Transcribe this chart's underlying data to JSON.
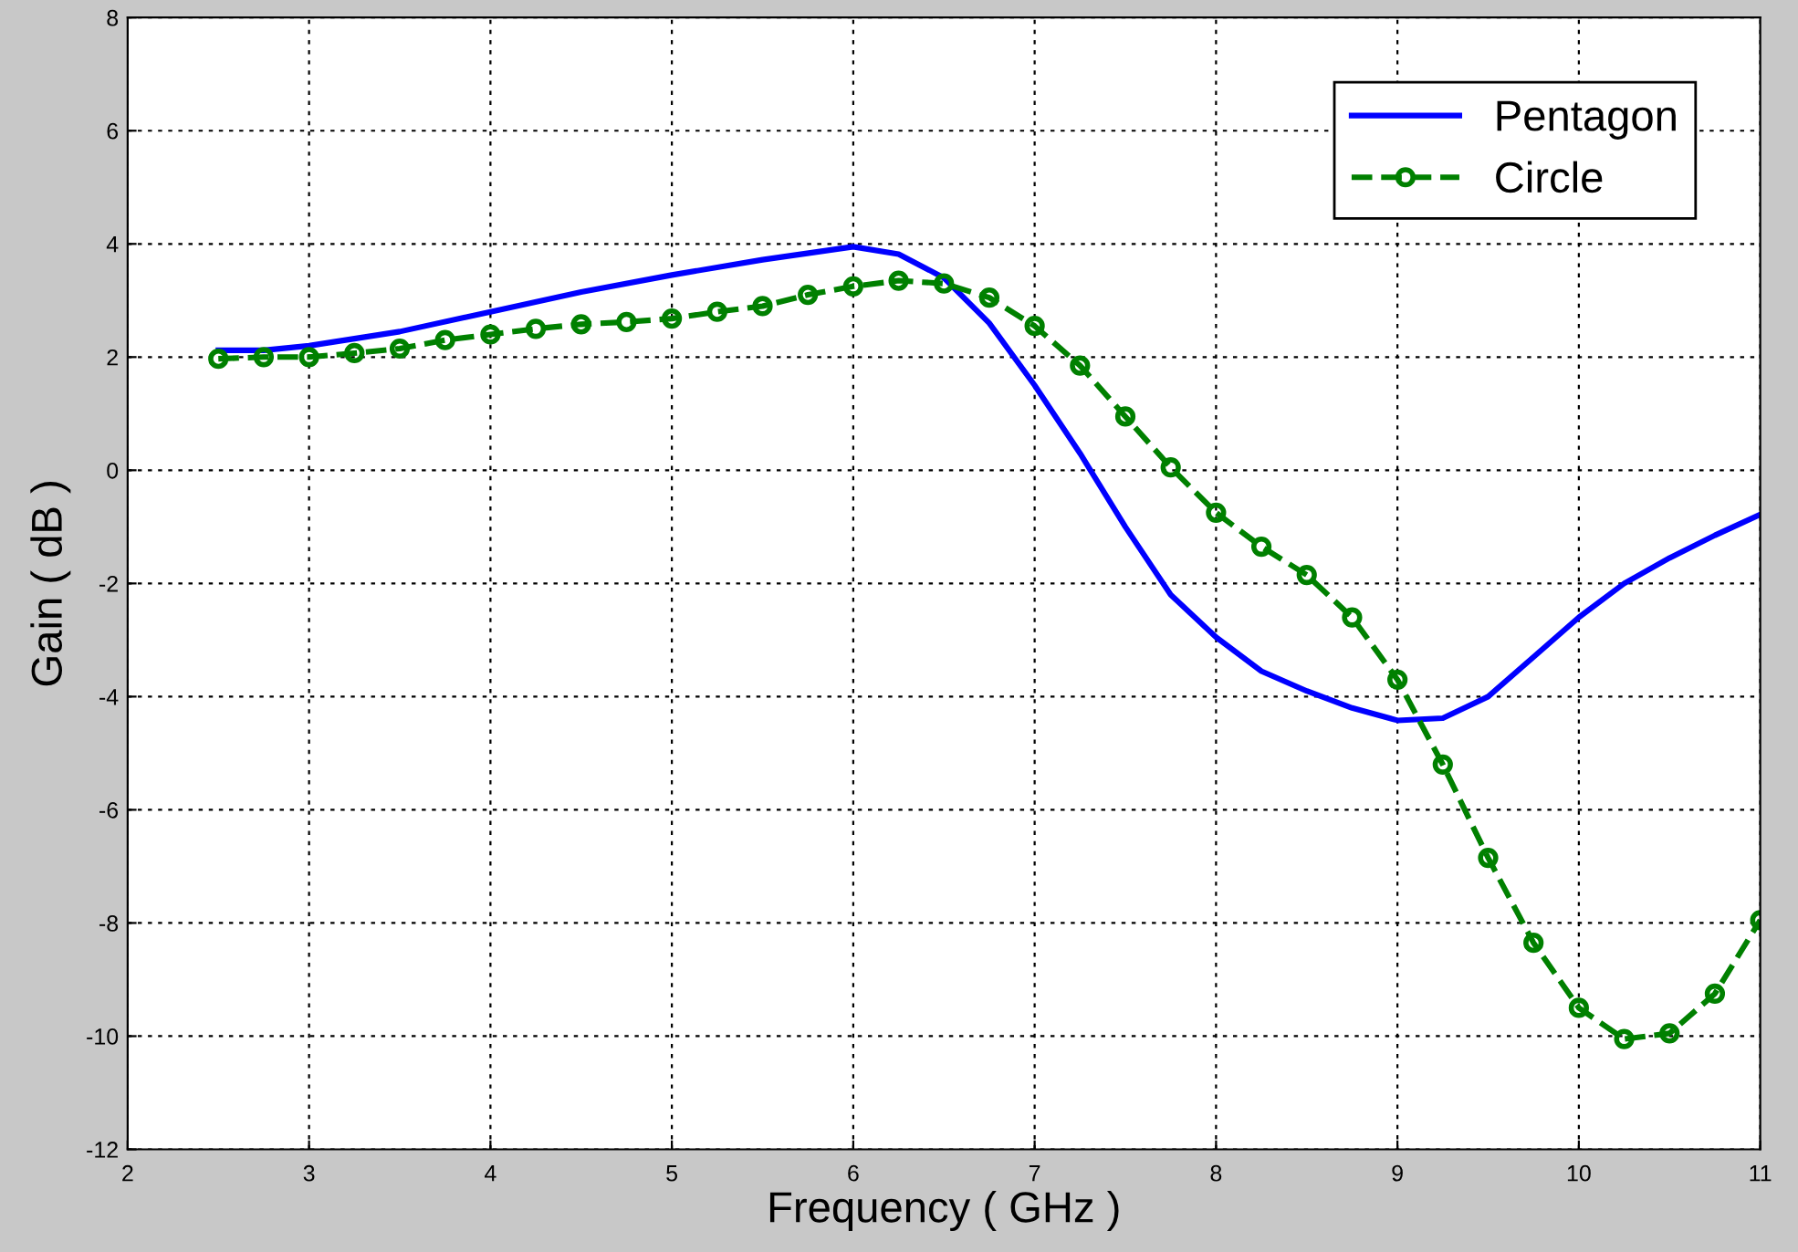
{
  "chart_data": {
    "type": "line",
    "xlabel": "Frequency ( GHz )",
    "ylabel": "Gain ( dB )",
    "xlim": [
      2,
      11
    ],
    "ylim": [
      -12,
      8
    ],
    "xticks": [
      2,
      3,
      4,
      5,
      6,
      7,
      8,
      9,
      10,
      11
    ],
    "yticks": [
      -12,
      -10,
      -8,
      -6,
      -4,
      -2,
      0,
      2,
      4,
      6,
      8
    ],
    "grid": true,
    "legend": "top right",
    "series": [
      {
        "name": "Pentagon",
        "color": "#0000ff",
        "marker": "none",
        "line_style": "solid",
        "x": [
          2.5,
          2.75,
          3,
          3.5,
          4,
          4.5,
          5,
          5.5,
          6,
          6.25,
          6.5,
          6.75,
          7,
          7.25,
          7.5,
          7.75,
          8,
          8.25,
          8.5,
          8.75,
          9,
          9.25,
          9.5,
          9.75,
          10,
          10.25,
          10.5,
          10.75,
          11
        ],
        "values": [
          2.12,
          2.12,
          2.2,
          2.45,
          2.8,
          3.15,
          3.45,
          3.72,
          3.95,
          3.82,
          3.4,
          2.6,
          1.5,
          0.3,
          -1.0,
          -2.2,
          -2.95,
          -3.55,
          -3.9,
          -4.2,
          -4.42,
          -4.38,
          -4.0,
          -3.3,
          -2.6,
          -2.0,
          -1.55,
          -1.15,
          -0.78
        ]
      },
      {
        "name": "Circle",
        "color": "#008000",
        "marker": "circle",
        "line_style": "dashed",
        "x": [
          2.5,
          2.75,
          3,
          3.25,
          3.5,
          3.75,
          4,
          4.25,
          4.5,
          4.75,
          5,
          5.25,
          5.5,
          5.75,
          6,
          6.25,
          6.5,
          6.75,
          7,
          7.25,
          7.5,
          7.75,
          8,
          8.25,
          8.5,
          8.75,
          9,
          9.25,
          9.5,
          9.75,
          10,
          10.25,
          10.5,
          10.75,
          11
        ],
        "values": [
          1.97,
          2.0,
          2.0,
          2.07,
          2.15,
          2.3,
          2.4,
          2.5,
          2.58,
          2.62,
          2.68,
          2.8,
          2.9,
          3.1,
          3.25,
          3.35,
          3.3,
          3.05,
          2.55,
          1.85,
          0.95,
          0.05,
          -0.75,
          -1.35,
          -1.85,
          -2.6,
          -3.7,
          -5.2,
          -6.85,
          -8.35,
          -9.5,
          -10.05,
          -9.95,
          -9.25,
          -7.95
        ]
      }
    ]
  }
}
